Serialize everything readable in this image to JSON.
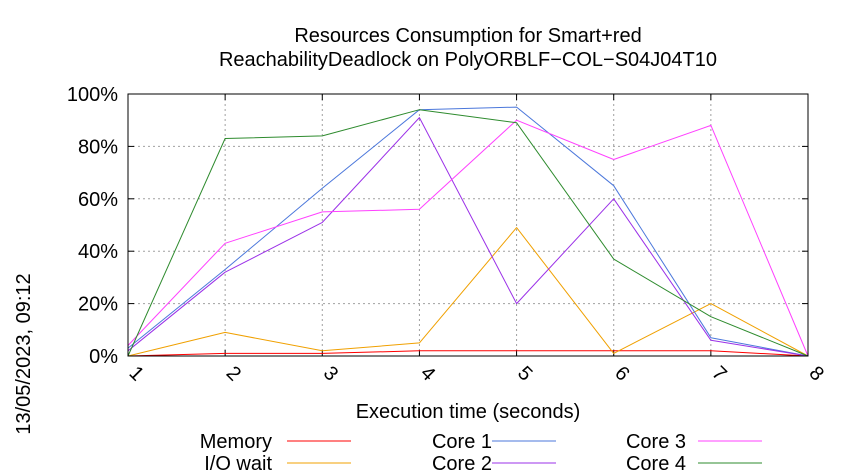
{
  "chart_data": {
    "type": "line",
    "title": [
      "Resources Consumption for Smart+red",
      "ReachabilityDeadlock on PolyORBLF−COL−S04J04T10"
    ],
    "xlabel": "Execution time (seconds)",
    "ylabel": "",
    "side_label": "13/05/2023, 09:12",
    "x": [
      1,
      2,
      3,
      4,
      5,
      6,
      7,
      8
    ],
    "x_ticks": [
      "1",
      "2",
      "3",
      "4",
      "5",
      "6",
      "7",
      "8"
    ],
    "y_ticks": [
      "0%",
      "20%",
      "40%",
      "60%",
      "80%",
      "100%"
    ],
    "ylim": [
      0,
      100
    ],
    "xlim": [
      1,
      8
    ],
    "grid": true,
    "legend_position": "bottom",
    "series": [
      {
        "name": "Memory",
        "color": "#ff0000",
        "values": [
          0,
          1,
          1,
          2,
          2,
          2,
          2,
          0
        ]
      },
      {
        "name": "I/O wait",
        "color": "#f0a000",
        "values": [
          0,
          9,
          2,
          5,
          49,
          1,
          20,
          0
        ]
      },
      {
        "name": "Core 1",
        "color": "#4b77db",
        "values": [
          3,
          33,
          64,
          94,
          95,
          65,
          7,
          0
        ]
      },
      {
        "name": "Core 2",
        "color": "#9b30e8",
        "values": [
          2,
          32,
          51,
          91,
          20,
          60,
          6,
          0
        ]
      },
      {
        "name": "Core 3",
        "color": "#ff40ff",
        "values": [
          4,
          43,
          55,
          56,
          90,
          75,
          88,
          0
        ]
      },
      {
        "name": "Core 4",
        "color": "#2e8b2e",
        "values": [
          0,
          83,
          84,
          94,
          89,
          37,
          15,
          0
        ]
      }
    ]
  }
}
